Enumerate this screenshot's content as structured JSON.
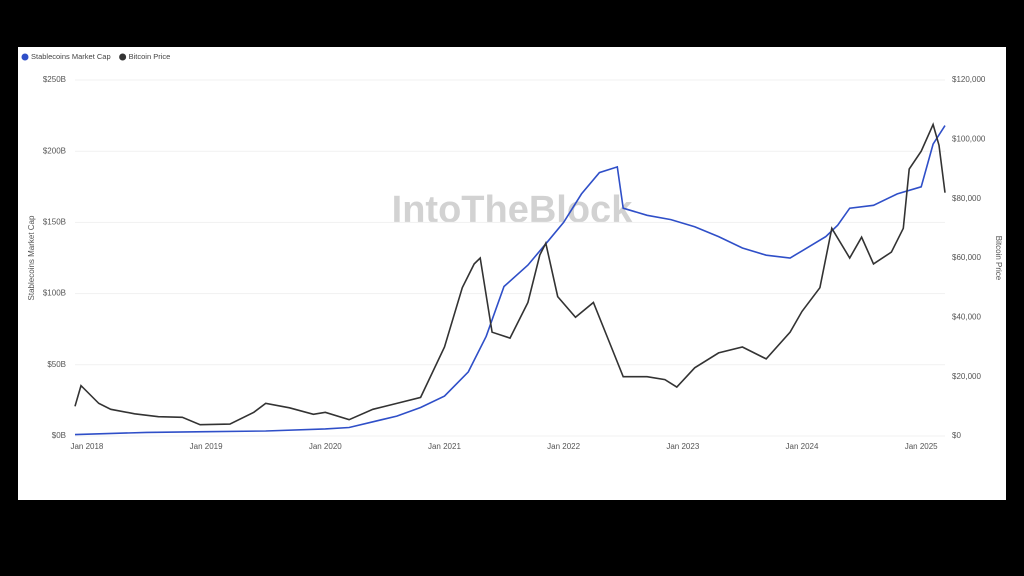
{
  "chart_data": {
    "type": "line",
    "watermark": "IntoTheBlock",
    "y_label": "Stablecoins Market Cap",
    "y2_label": "Bitcoin Price",
    "grid": true,
    "xlim": [
      2017.9,
      2025.2
    ],
    "xticks": [
      {
        "value": 2018,
        "label": "Jan 2018"
      },
      {
        "value": 2019,
        "label": "Jan 2019"
      },
      {
        "value": 2020,
        "label": "Jan 2020"
      },
      {
        "value": 2021,
        "label": "Jan 2021"
      },
      {
        "value": 2022,
        "label": "Jan 2022"
      },
      {
        "value": 2023,
        "label": "Jan 2023"
      },
      {
        "value": 2024,
        "label": "Jan 2024"
      },
      {
        "value": 2025,
        "label": "Jan 2025"
      }
    ],
    "ylim": [
      0,
      250
    ],
    "yticks": [
      {
        "value": 0,
        "label": "$0B"
      },
      {
        "value": 50,
        "label": "$50B"
      },
      {
        "value": 100,
        "label": "$100B"
      },
      {
        "value": 150,
        "label": "$150B"
      },
      {
        "value": 200,
        "label": "$200B"
      },
      {
        "value": 250,
        "label": "$250B"
      }
    ],
    "y2lim": [
      0,
      120000
    ],
    "y2ticks": [
      {
        "value": 0,
        "label": "$0"
      },
      {
        "value": 20000,
        "label": "$20,000"
      },
      {
        "value": 40000,
        "label": "$40,000"
      },
      {
        "value": 60000,
        "label": "$60,000"
      },
      {
        "value": 80000,
        "label": "$80,000"
      },
      {
        "value": 100000,
        "label": "$100,000"
      },
      {
        "value": 120000,
        "label": "$120,000"
      }
    ],
    "series": [
      {
        "name": "Stablecoins Market Cap",
        "color": "#2f4fc8",
        "x": [
          2017.9,
          2018.5,
          2019.0,
          2019.5,
          2020.0,
          2020.2,
          2020.4,
          2020.6,
          2020.8,
          2021.0,
          2021.2,
          2021.35,
          2021.5,
          2021.7,
          2021.85,
          2022.0,
          2022.15,
          2022.3,
          2022.45,
          2022.5,
          2022.7,
          2022.9,
          2023.1,
          2023.3,
          2023.5,
          2023.7,
          2023.9,
          2024.0,
          2024.2,
          2024.3,
          2024.4,
          2024.6,
          2024.8,
          2025.0,
          2025.1,
          2025.2
        ],
        "values": [
          1,
          2.5,
          3,
          3.5,
          5,
          6,
          10,
          14,
          20,
          28,
          45,
          70,
          105,
          120,
          135,
          150,
          170,
          185,
          189,
          160,
          155,
          152,
          147,
          140,
          132,
          127,
          125,
          130,
          140,
          148,
          160,
          162,
          170,
          175,
          205,
          218
        ]
      },
      {
        "name": "Bitcoin Price",
        "color": "#333333",
        "axis": "y2",
        "x": [
          2017.9,
          2017.95,
          2018.1,
          2018.2,
          2018.4,
          2018.6,
          2018.8,
          2018.95,
          2019.2,
          2019.4,
          2019.5,
          2019.7,
          2019.9,
          2020.0,
          2020.2,
          2020.4,
          2020.6,
          2020.8,
          2021.0,
          2021.15,
          2021.25,
          2021.3,
          2021.4,
          2021.55,
          2021.7,
          2021.8,
          2021.85,
          2021.95,
          2022.1,
          2022.25,
          2022.4,
          2022.5,
          2022.7,
          2022.85,
          2022.95,
          2023.1,
          2023.3,
          2023.5,
          2023.7,
          2023.9,
          2024.0,
          2024.15,
          2024.25,
          2024.4,
          2024.5,
          2024.6,
          2024.75,
          2024.85,
          2024.9,
          2025.0,
          2025.1,
          2025.15,
          2025.2
        ],
        "values": [
          10000,
          17000,
          11000,
          9000,
          7500,
          6500,
          6300,
          3800,
          4000,
          8000,
          11000,
          9500,
          7300,
          8000,
          5500,
          9000,
          11000,
          13000,
          30000,
          50000,
          58000,
          60000,
          35000,
          33000,
          45000,
          61000,
          65000,
          47000,
          40000,
          45000,
          30000,
          20000,
          20000,
          19000,
          16500,
          23000,
          28000,
          30000,
          26000,
          35000,
          42000,
          50000,
          70000,
          60000,
          67000,
          58000,
          62000,
          70000,
          90000,
          96000,
          105000,
          98000,
          82000
        ]
      }
    ]
  }
}
